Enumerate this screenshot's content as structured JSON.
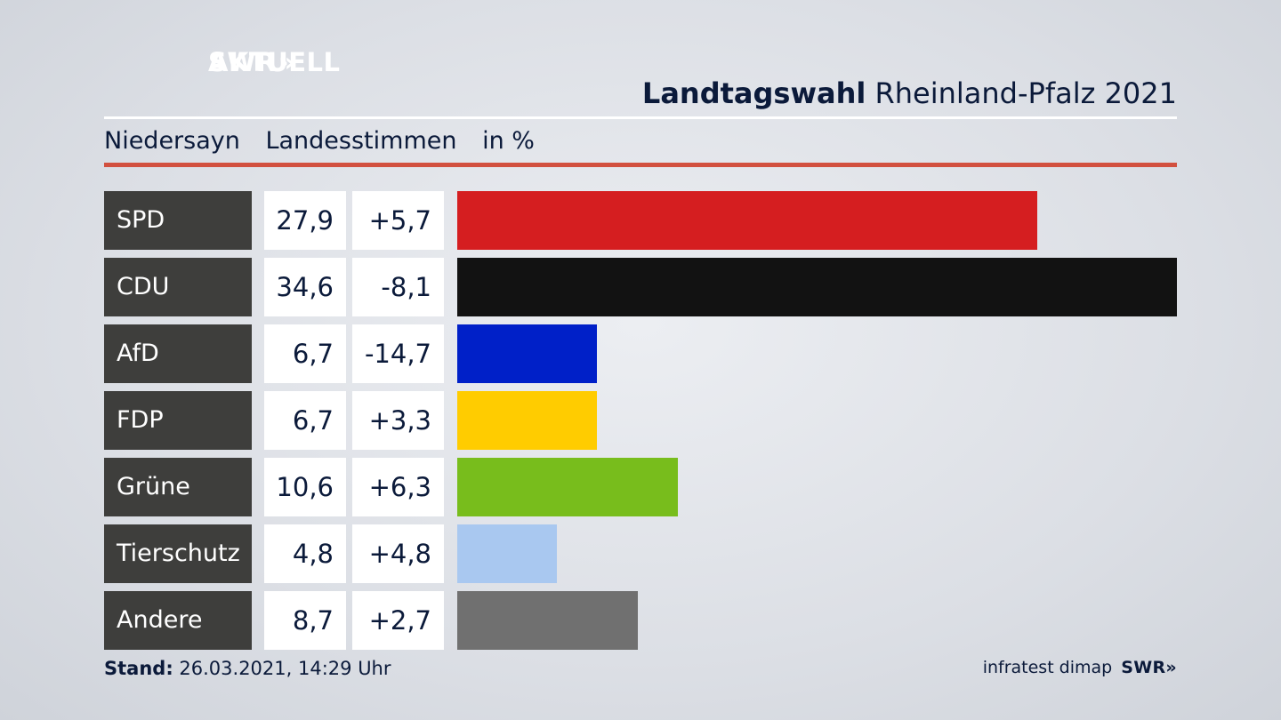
{
  "logo": {
    "line1": "SWR",
    "line1_mark": "»",
    "line2": "AKTUELL"
  },
  "header": {
    "title_strong": "Landtagswahl",
    "title_rest": "Rheinland-Pfalz 2021"
  },
  "subheader": {
    "region": "Niedersayn",
    "vote_type": "Landesstimmen",
    "unit": "in %"
  },
  "chart_data": {
    "type": "bar",
    "orientation": "horizontal",
    "xlim": [
      0,
      34.6
    ],
    "categories": [
      "SPD",
      "CDU",
      "AfD",
      "FDP",
      "Grüne",
      "Tierschutz",
      "Andere"
    ],
    "values": [
      27.9,
      34.6,
      6.7,
      6.7,
      10.6,
      4.8,
      8.7
    ],
    "value_labels": [
      "27,9",
      "34,6",
      "6,7",
      "6,7",
      "10,6",
      "4,8",
      "8,7"
    ],
    "change_labels": [
      "+5,7",
      "-8,1",
      "-14,7",
      "+3,3",
      "+6,3",
      "+4,8",
      "+2,7"
    ],
    "colors": [
      "#d51e20",
      "#121212",
      "#0020c8",
      "#ffcc00",
      "#78bd1c",
      "#a9c8f0",
      "#707070"
    ]
  },
  "footer": {
    "stand_label": "Stand:",
    "stand_value": "26.03.2021, 14:29 Uhr",
    "source": "infratest dimap",
    "brand": "SWR",
    "brand_mark": "»"
  }
}
